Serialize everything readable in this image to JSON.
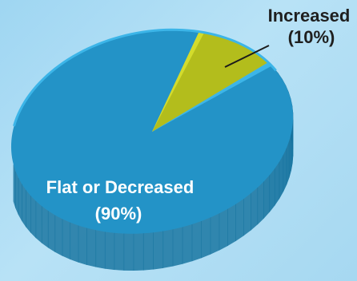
{
  "chart_data": {
    "type": "pie",
    "slices": [
      {
        "label": "Flat or Decreased",
        "pct_label": "(90%)",
        "value": 90,
        "color": "#2393c7",
        "side_color": "#15739f",
        "rim_color": "#3cb5e8"
      },
      {
        "label": "Increased",
        "pct_label": "(10%)",
        "value": 10,
        "color": "#b3bd1c",
        "side_color": "#8a9112",
        "rim_color": "#d3dc2c"
      }
    ],
    "title": "",
    "style": "3d-tilted-pie",
    "background": "#a8daf2"
  }
}
